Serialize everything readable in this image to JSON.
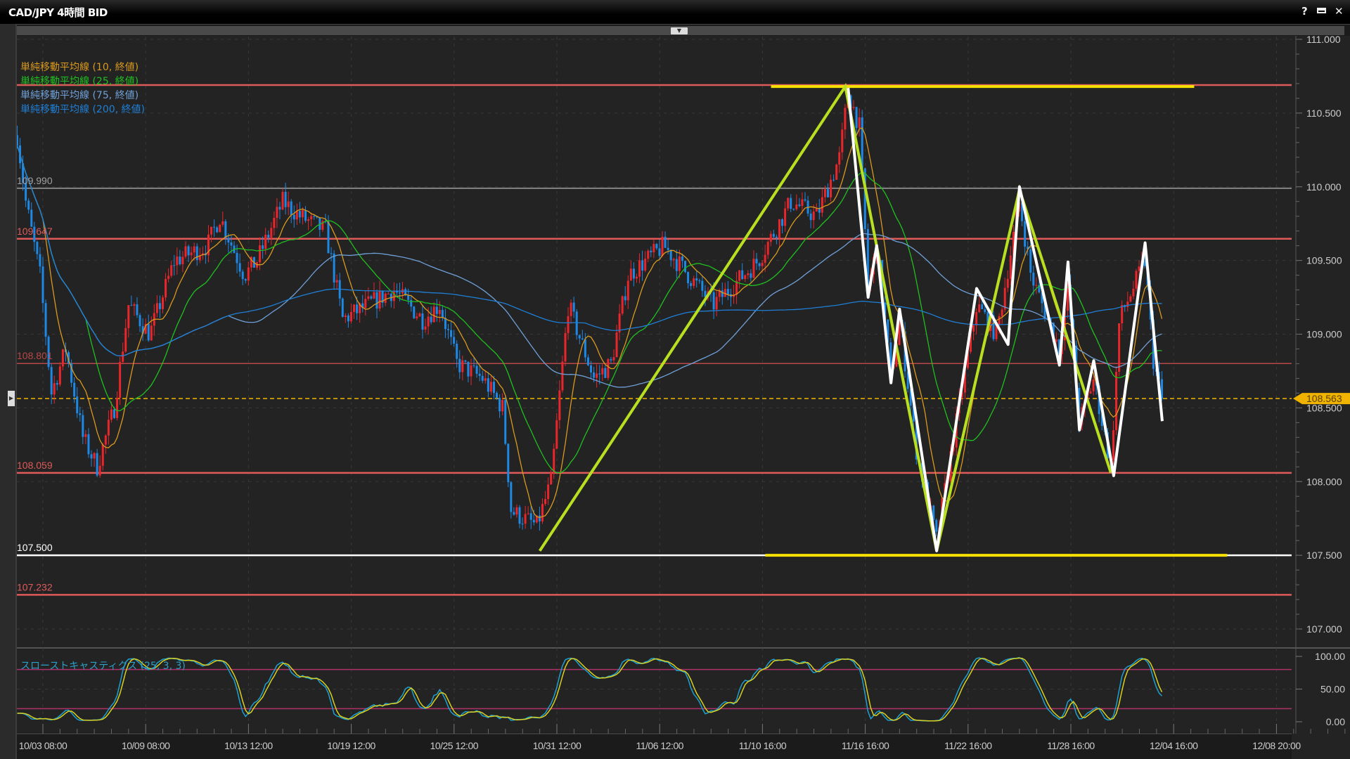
{
  "window": {
    "title": "CAD/JPY 4時間 BID",
    "help_label": "?",
    "maximize_icon": "maximize-icon",
    "close_label": "✕"
  },
  "legend": [
    {
      "label": "単純移動平均線 (10, 終値)",
      "color": "#d99a1e",
      "period": 10
    },
    {
      "label": "単純移動平均線 (25, 終値)",
      "color": "#1fc01f",
      "period": 25
    },
    {
      "label": "単純移動平均線 (75, 終値)",
      "color": "#6fa0d8",
      "period": 75
    },
    {
      "label": "単純移動平均線 (200, 終値)",
      "color": "#1f7fd6",
      "period": 200
    }
  ],
  "stoch_legend": "スローストキャスティクス (25, 3, 3)",
  "chart_data": {
    "type": "candlestick",
    "symbol": "CAD/JPY",
    "timeframe": "4時間",
    "up_color": "#e8262b",
    "down_color": "#1e88e5",
    "price_axis": {
      "min": 107.0,
      "max": 111.0,
      "ticks": [
        "111.000",
        "110.500",
        "110.000",
        "109.500",
        "109.000",
        "108.500",
        "108.000",
        "107.500",
        "107.000"
      ]
    },
    "time_axis": {
      "ticks": [
        "10/03 08:00",
        "10/09 08:00",
        "10/13 12:00",
        "10/19 12:00",
        "10/25 12:00",
        "10/31 12:00",
        "11/06 12:00",
        "11/10 16:00",
        "11/16 16:00",
        "11/22 16:00",
        "11/28 16:00",
        "12/04 16:00",
        "12/08 20:00"
      ]
    },
    "price_path": [
      [
        "10/01 20:00",
        110.35
      ],
      [
        "10/02 08:00",
        109.9
      ],
      [
        "10/03 04:00",
        109.4
      ],
      [
        "10/03 20:00",
        108.6
      ],
      [
        "10/04 16:00",
        108.9
      ],
      [
        "10/05 16:00",
        108.3
      ],
      [
        "10/06 12:00",
        108.1
      ],
      [
        "10/07 12:00",
        108.5
      ],
      [
        "10/08 08:00",
        109.2
      ],
      [
        "10/09 12:00",
        109.0
      ],
      [
        "10/10 12:00",
        109.5
      ],
      [
        "10/11 20:00",
        109.6
      ],
      [
        "10/12 08:00",
        109.8
      ],
      [
        "10/13 08:00",
        109.4
      ],
      [
        "10/14 00:00",
        109.5
      ],
      [
        "10/15 12:00",
        109.9
      ],
      [
        "10/16 12:00",
        109.8
      ],
      [
        "10/18 00:00",
        109.7
      ],
      [
        "10/19 00:00",
        109.1
      ],
      [
        "10/20 12:00",
        109.2
      ],
      [
        "10/22 00:00",
        109.3
      ],
      [
        "10/23 16:00",
        109.1
      ],
      [
        "10/24 16:00",
        109.2
      ],
      [
        "10/25 16:00",
        108.8
      ],
      [
        "10/27 04:00",
        108.7
      ],
      [
        "10/28 08:00",
        108.5
      ],
      [
        "10/28 20:00",
        107.8
      ],
      [
        "10/30 08:00",
        107.7
      ],
      [
        "10/31 04:00",
        108.0
      ],
      [
        "11/01 04:00",
        109.2
      ],
      [
        "11/02 16:00",
        108.7
      ],
      [
        "11/03 16:00",
        108.8
      ],
      [
        "11/04 16:00",
        109.4
      ],
      [
        "11/06 16:00",
        109.6
      ],
      [
        "11/07 16:00",
        109.4
      ],
      [
        "11/08 16:00",
        109.2
      ],
      [
        "11/10 12:00",
        109.5
      ],
      [
        "11/12 08:00",
        109.9
      ],
      [
        "11/13 20:00",
        109.8
      ],
      [
        "11/15 04:00",
        110.2
      ],
      [
        "11/15 16:00",
        110.65
      ],
      [
        "11/16 08:00",
        110.4
      ],
      [
        "11/16 20:00",
        109.3
      ],
      [
        "11/17 08:00",
        109.6
      ],
      [
        "11/18 04:00",
        108.7
      ],
      [
        "11/18 16:00",
        109.1
      ],
      [
        "11/19 16:00",
        108.2
      ],
      [
        "11/20 20:00",
        107.6
      ],
      [
        "11/21 20:00",
        108.3
      ],
      [
        "11/23 04:00",
        109.2
      ],
      [
        "11/24 08:00",
        109.0
      ],
      [
        "11/25 16:00",
        109.9
      ],
      [
        "11/26 08:00",
        109.4
      ],
      [
        "11/28 00:00",
        108.9
      ],
      [
        "11/28 12:00",
        109.3
      ],
      [
        "11/29 04:00",
        108.4
      ],
      [
        "11/30 00:00",
        108.7
      ],
      [
        "12/01 00:00",
        108.1
      ],
      [
        "12/01 12:00",
        109.1
      ],
      [
        "12/03 00:00",
        109.5
      ],
      [
        "12/03 12:00",
        108.8
      ],
      [
        "12/04 00:00",
        108.563
      ]
    ],
    "current_price": {
      "value": 108.563,
      "label": "108.563",
      "color": "#f0b400"
    },
    "levels": [
      {
        "value": 110.69,
        "label": "",
        "color": "#e05a5a"
      },
      {
        "value": 109.99,
        "label": "109.990",
        "color": "#a0a0a0"
      },
      {
        "value": 109.647,
        "label": "109.647",
        "color": "#e05a5a"
      },
      {
        "value": 108.801,
        "label": "108.801",
        "color": "#b84848"
      },
      {
        "value": 108.059,
        "label": "108.059",
        "color": "#e05a5a"
      },
      {
        "value": 107.5,
        "label": "107.500",
        "color": "#ffffff"
      },
      {
        "value": 107.232,
        "label": "107.232",
        "color": "#e05a5a"
      }
    ],
    "horizontal_segments": [
      {
        "value": 110.68,
        "from": "11/11 04:00",
        "to": "12/05 12:00",
        "color": "#f5e000"
      },
      {
        "value": 107.5,
        "from": "11/10 20:00",
        "to": "12/06 20:00",
        "color": "#f5e000"
      }
    ],
    "trendline": {
      "color": "#b8e020",
      "points": [
        [
          "10/30 12:00",
          107.53
        ],
        [
          "11/15 12:00",
          110.68
        ],
        [
          "11/20 20:00",
          107.53
        ],
        [
          "11/25 16:00",
          109.98
        ],
        [
          "12/01 00:00",
          108.06
        ]
      ]
    },
    "zigzag": {
      "color": "#ffffff",
      "points": [
        [
          "11/15 16:00",
          110.67
        ],
        [
          "11/16 20:00",
          109.25
        ],
        [
          "11/17 08:00",
          109.6
        ],
        [
          "11/18 04:00",
          108.67
        ],
        [
          "11/18 16:00",
          109.17
        ],
        [
          "11/20 20:00",
          107.53
        ],
        [
          "11/23 04:00",
          109.31
        ],
        [
          "11/25 00:00",
          108.93
        ],
        [
          "11/25 16:00",
          110.0
        ],
        [
          "11/28 00:00",
          108.79
        ],
        [
          "11/28 12:00",
          109.49
        ],
        [
          "11/29 04:00",
          108.35
        ],
        [
          "11/30 00:00",
          108.82
        ],
        [
          "12/01 04:00",
          108.04
        ],
        [
          "12/03 00:00",
          109.62
        ],
        [
          "12/04 00:00",
          108.41
        ]
      ]
    },
    "stochastic": {
      "k_period": 25,
      "slowing": 3,
      "d_period": 3,
      "k_color": "#1ea0d0",
      "d_color": "#d8d020",
      "axis_ticks": [
        "100.00",
        "50.00",
        "0.00"
      ],
      "levels": [
        80,
        20
      ],
      "level_color": "#b0306a"
    }
  }
}
